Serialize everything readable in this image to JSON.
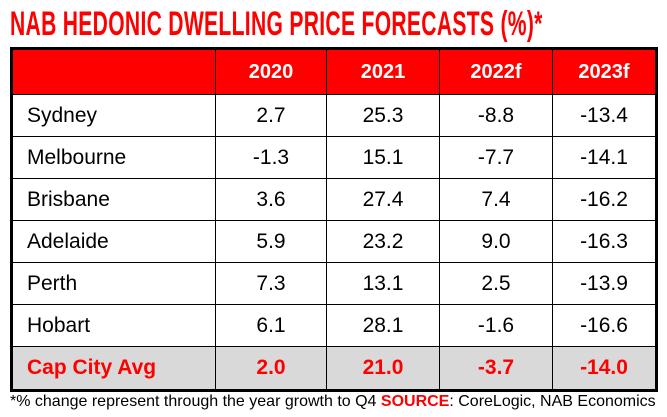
{
  "title": "NAB HEDONIC DWELLING PRICE FORECASTS (%)*",
  "columns": [
    "",
    "2020",
    "2021",
    "2022f",
    "2023f"
  ],
  "rows": [
    {
      "city": "Sydney",
      "values": [
        "2.7",
        "25.3",
        "-8.8",
        "-13.4"
      ]
    },
    {
      "city": "Melbourne",
      "values": [
        "-1.3",
        "15.1",
        "-7.7",
        "-14.1"
      ]
    },
    {
      "city": "Brisbane",
      "values": [
        "3.6",
        "27.4",
        "7.4",
        "-16.2"
      ]
    },
    {
      "city": "Adelaide",
      "values": [
        "5.9",
        "23.2",
        "9.0",
        "-16.3"
      ]
    },
    {
      "city": "Perth",
      "values": [
        "7.3",
        "13.1",
        "2.5",
        "-13.9"
      ]
    },
    {
      "city": "Hobart",
      "values": [
        "6.1",
        "28.1",
        "-1.6",
        "-16.6"
      ]
    }
  ],
  "average": {
    "city": "Cap City Avg",
    "values": [
      "2.0",
      "21.0",
      "-3.7",
      "-14.0"
    ]
  },
  "footnote": {
    "note": "*% change represent through the year growth to Q4 ",
    "source_label": "SOURCE",
    "source": ": CoreLogic, NAB Economics"
  },
  "colors": {
    "accent": "#ff0000",
    "avg_bg": "#d9d9d9"
  }
}
